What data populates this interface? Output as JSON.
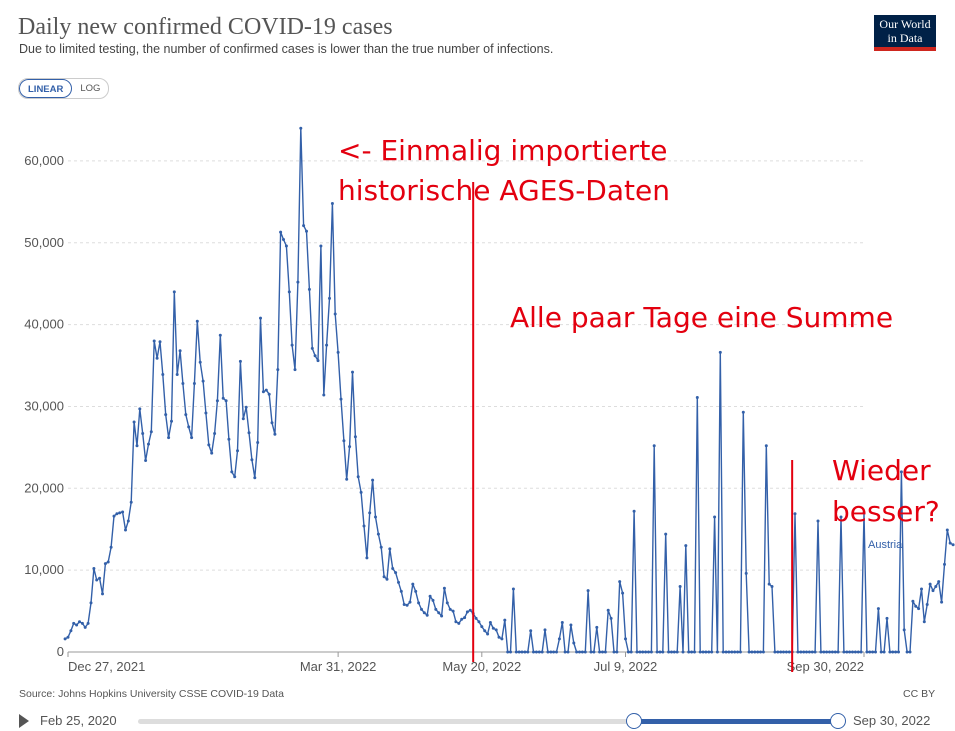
{
  "header": {
    "title": "Daily new confirmed COVID-19 cases",
    "subtitle": "Due to limited testing, the number of confirmed cases is lower than the true number of infections.",
    "logo_line1": "Our World",
    "logo_line2": "in Data"
  },
  "scale_toggle": {
    "linear": "LINEAR",
    "log": "LOG"
  },
  "footer": {
    "source": "Source: Johns Hopkins University CSSE COVID-19 Data",
    "license": "CC BY"
  },
  "timeline": {
    "start": "Feb 25, 2020",
    "end": "Sep 30, 2022",
    "range_start_fraction": 0.708,
    "range_end_fraction": 1.0
  },
  "chart_data": {
    "type": "line",
    "title": "Daily new confirmed COVID-19 cases",
    "xlabel": "",
    "ylabel": "",
    "ylim": [
      0,
      65000
    ],
    "xlim_days": [
      0,
      277
    ],
    "x_ticks": [
      {
        "day": 0,
        "label": "Dec 27, 2021"
      },
      {
        "day": 94,
        "label": "Mar 31, 2022"
      },
      {
        "day": 144,
        "label": "May 20, 2022"
      },
      {
        "day": 194,
        "label": "Jul 9, 2022"
      },
      {
        "day": 277,
        "label": "Sep 30, 2022"
      }
    ],
    "y_ticks": [
      {
        "value": 0,
        "label": "0"
      },
      {
        "value": 10000,
        "label": "10,000"
      },
      {
        "value": 20000,
        "label": "20,000"
      },
      {
        "value": 30000,
        "label": "30,000"
      },
      {
        "value": 40000,
        "label": "40,000"
      },
      {
        "value": 50000,
        "label": "50,000"
      },
      {
        "value": 60000,
        "label": "60,000"
      }
    ],
    "grid": true,
    "line_color": "#3360a9",
    "series_label": "Austria",
    "series": [
      {
        "name": "Austria",
        "start_day": -1,
        "values": [
          1600,
          1800,
          2600,
          3500,
          3300,
          3700,
          3500,
          3000,
          3500,
          6000,
          10200,
          8800,
          9000,
          7100,
          10800,
          11000,
          12800,
          16600,
          16900,
          17000,
          17100,
          14900,
          16000,
          18300,
          28100,
          25200,
          29700,
          26700,
          23400,
          25400,
          26900,
          38000,
          35900,
          37900,
          33900,
          29000,
          26200,
          28200,
          44000,
          33900,
          36800,
          32800,
          29000,
          27500,
          26200,
          32800,
          40400,
          35400,
          33100,
          29200,
          25300,
          24300,
          26700,
          30700,
          38700,
          31000,
          30700,
          26000,
          22000,
          21400,
          24600,
          35500,
          28500,
          29900,
          26800,
          23500,
          21300,
          25600,
          40800,
          31800,
          32000,
          31500,
          28000,
          26600,
          34500,
          51300,
          50400,
          49600,
          44000,
          37500,
          34500,
          45200,
          64000,
          52100,
          51400,
          44300,
          37100,
          36200,
          35600,
          49600,
          31400,
          37500,
          43200,
          54800,
          41300,
          36600,
          30900,
          25800,
          21100,
          25100,
          34200,
          26300,
          21400,
          19500,
          15400,
          11500,
          17000,
          21000,
          16500,
          14400,
          12800,
          9200,
          8900,
          12600,
          10200,
          9700,
          8500,
          7400,
          5800,
          5700,
          6100,
          8300,
          7400,
          6000,
          5200,
          4800,
          4500,
          6800,
          6300,
          5200,
          4800,
          4400,
          7800,
          6000,
          5200,
          5000,
          3700,
          3500,
          4000,
          4200,
          4900,
          5100,
          4700,
          4100,
          3700,
          3100,
          2600,
          2200,
          3600,
          2900,
          2700,
          1800,
          1600,
          3900,
          0,
          0,
          7700,
          0,
          0,
          0,
          0,
          0,
          2600,
          0,
          0,
          0,
          0,
          2700,
          0,
          0,
          0,
          0,
          1600,
          3600,
          0,
          0,
          3300,
          1100,
          0,
          0,
          0,
          0,
          7500,
          0,
          0,
          3000,
          0,
          0,
          0,
          5100,
          4100,
          0,
          0,
          8600,
          7200,
          1600,
          0,
          0,
          17200,
          0,
          0,
          0,
          0,
          0,
          0,
          25200,
          0,
          0,
          0,
          14400,
          0,
          0,
          0,
          0,
          8000,
          0,
          13000,
          0,
          0,
          0,
          31100,
          0,
          0,
          0,
          0,
          0,
          16500,
          0,
          36600,
          0,
          0,
          0,
          0,
          0,
          0,
          0,
          29300,
          9600,
          0,
          0,
          0,
          0,
          0,
          0,
          25200,
          8300,
          8000,
          0,
          0,
          0,
          0,
          0,
          0,
          0,
          16900,
          0,
          0,
          0,
          0,
          0,
          0,
          0,
          16000,
          0,
          0,
          0,
          0,
          0,
          0,
          0,
          16500,
          0,
          0,
          0,
          0,
          0,
          0,
          0,
          17000,
          0,
          0,
          0,
          0,
          5300,
          0,
          0,
          4100,
          0,
          0,
          0,
          0,
          22000,
          2700,
          0,
          0,
          6200,
          5600,
          5300,
          7700,
          3700,
          5800,
          8300,
          7500,
          8000,
          8600,
          6100,
          10700,
          14900,
          13300,
          13100
        ]
      }
    ],
    "annotations": [
      {
        "text_line1": "<- Einmalig importierte",
        "text_line2": "historische AGES-Daten",
        "color": "#e3000f"
      },
      {
        "text": "Alle paar Tage eine Summe",
        "color": "#e3000f"
      },
      {
        "text_line1": "Wieder",
        "text_line2": "besser?",
        "color": "#e3000f"
      }
    ],
    "marker_lines_day": [
      141,
      252
    ]
  }
}
